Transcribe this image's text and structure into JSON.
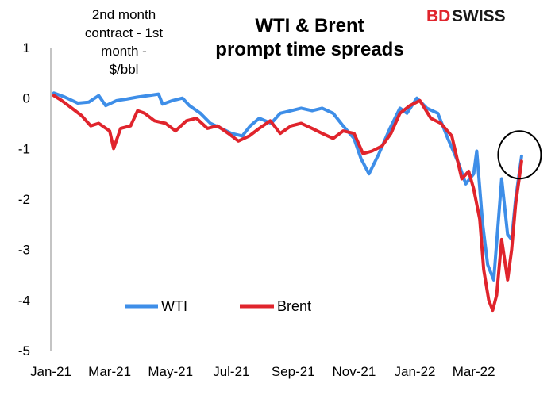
{
  "brand": {
    "prefix": "BD",
    "suffix": "SWISS"
  },
  "chart_data": {
    "type": "line",
    "title_lines": [
      "WTI & Brent",
      "prompt time spreads"
    ],
    "unit_lines": [
      "2nd month",
      "contract - 1st",
      "month -",
      "$/bbl"
    ],
    "y_ticks": [
      "1",
      "0",
      "-1",
      "-2",
      "-3",
      "-4",
      "-5"
    ],
    "ylim": [
      -5,
      1
    ],
    "x_tick_labels": [
      "Jan-21",
      "Mar-21",
      "May-21",
      "Jul-21",
      "Sep-21",
      "Nov-21",
      "Jan-22",
      "Mar-22"
    ],
    "x_tick_dates": [
      "2021-01-01",
      "2021-03-01",
      "2021-05-01",
      "2021-07-01",
      "2021-09-01",
      "2021-11-01",
      "2022-01-01",
      "2022-03-01"
    ],
    "x_range": [
      "2021-01-01",
      "2022-04-30"
    ],
    "legend_position": "bottom-left",
    "series": [
      {
        "name": "WTI",
        "color": "#3e8ee8",
        "points": [
          [
            "2021-01-04",
            0.1
          ],
          [
            "2021-01-15",
            0.02
          ],
          [
            "2021-01-28",
            -0.1
          ],
          [
            "2021-02-08",
            -0.08
          ],
          [
            "2021-02-18",
            0.05
          ],
          [
            "2021-02-25",
            -0.15
          ],
          [
            "2021-03-08",
            -0.05
          ],
          [
            "2021-03-18",
            -0.02
          ],
          [
            "2021-03-29",
            0.02
          ],
          [
            "2021-04-09",
            0.05
          ],
          [
            "2021-04-19",
            0.08
          ],
          [
            "2021-04-23",
            -0.12
          ],
          [
            "2021-05-03",
            -0.05
          ],
          [
            "2021-05-13",
            0.0
          ],
          [
            "2021-05-20",
            -0.15
          ],
          [
            "2021-05-31",
            -0.3
          ],
          [
            "2021-06-10",
            -0.5
          ],
          [
            "2021-06-21",
            -0.6
          ],
          [
            "2021-07-01",
            -0.7
          ],
          [
            "2021-07-12",
            -0.75
          ],
          [
            "2021-07-20",
            -0.55
          ],
          [
            "2021-07-29",
            -0.4
          ],
          [
            "2021-08-10",
            -0.5
          ],
          [
            "2021-08-19",
            -0.3
          ],
          [
            "2021-08-30",
            -0.25
          ],
          [
            "2021-09-09",
            -0.2
          ],
          [
            "2021-09-20",
            -0.25
          ],
          [
            "2021-09-30",
            -0.2
          ],
          [
            "2021-10-11",
            -0.3
          ],
          [
            "2021-10-21",
            -0.55
          ],
          [
            "2021-11-01",
            -0.8
          ],
          [
            "2021-11-08",
            -1.2
          ],
          [
            "2021-11-16",
            -1.5
          ],
          [
            "2021-11-26",
            -1.1
          ],
          [
            "2021-12-07",
            -0.6
          ],
          [
            "2021-12-17",
            -0.2
          ],
          [
            "2021-12-24",
            -0.3
          ],
          [
            "2022-01-03",
            0.0
          ],
          [
            "2022-01-13",
            -0.2
          ],
          [
            "2022-01-24",
            -0.3
          ],
          [
            "2022-02-03",
            -0.8
          ],
          [
            "2022-02-14",
            -1.3
          ],
          [
            "2022-02-21",
            -1.7
          ],
          [
            "2022-03-01",
            -1.5
          ],
          [
            "2022-03-04",
            -1.05
          ],
          [
            "2022-03-10",
            -2.5
          ],
          [
            "2022-03-15",
            -3.3
          ],
          [
            "2022-03-21",
            -3.6
          ],
          [
            "2022-03-25",
            -2.6
          ],
          [
            "2022-03-29",
            -1.6
          ],
          [
            "2022-04-04",
            -2.7
          ],
          [
            "2022-04-08",
            -2.8
          ],
          [
            "2022-04-12",
            -2.0
          ],
          [
            "2022-04-18",
            -1.15
          ]
        ]
      },
      {
        "name": "Brent",
        "color": "#e0242c",
        "points": [
          [
            "2021-01-04",
            0.05
          ],
          [
            "2021-01-12",
            -0.05
          ],
          [
            "2021-01-22",
            -0.2
          ],
          [
            "2021-02-01",
            -0.35
          ],
          [
            "2021-02-10",
            -0.55
          ],
          [
            "2021-02-18",
            -0.5
          ],
          [
            "2021-03-01",
            -0.65
          ],
          [
            "2021-03-05",
            -1.0
          ],
          [
            "2021-03-12",
            -0.6
          ],
          [
            "2021-03-22",
            -0.55
          ],
          [
            "2021-03-29",
            -0.25
          ],
          [
            "2021-04-05",
            -0.3
          ],
          [
            "2021-04-15",
            -0.45
          ],
          [
            "2021-04-26",
            -0.5
          ],
          [
            "2021-05-06",
            -0.65
          ],
          [
            "2021-05-17",
            -0.45
          ],
          [
            "2021-05-27",
            -0.4
          ],
          [
            "2021-06-07",
            -0.6
          ],
          [
            "2021-06-17",
            -0.55
          ],
          [
            "2021-06-28",
            -0.7
          ],
          [
            "2021-07-08",
            -0.85
          ],
          [
            "2021-07-19",
            -0.75
          ],
          [
            "2021-07-29",
            -0.6
          ],
          [
            "2021-08-09",
            -0.45
          ],
          [
            "2021-08-19",
            -0.7
          ],
          [
            "2021-08-30",
            -0.55
          ],
          [
            "2021-09-09",
            -0.5
          ],
          [
            "2021-09-20",
            -0.6
          ],
          [
            "2021-09-30",
            -0.7
          ],
          [
            "2021-10-11",
            -0.8
          ],
          [
            "2021-10-21",
            -0.65
          ],
          [
            "2021-11-01",
            -0.7
          ],
          [
            "2021-11-10",
            -1.1
          ],
          [
            "2021-11-19",
            -1.05
          ],
          [
            "2021-11-29",
            -0.95
          ],
          [
            "2021-12-08",
            -0.7
          ],
          [
            "2021-12-17",
            -0.3
          ],
          [
            "2021-12-27",
            -0.15
          ],
          [
            "2022-01-06",
            -0.05
          ],
          [
            "2022-01-17",
            -0.4
          ],
          [
            "2022-01-27",
            -0.5
          ],
          [
            "2022-02-07",
            -0.75
          ],
          [
            "2022-02-17",
            -1.6
          ],
          [
            "2022-02-24",
            -1.45
          ],
          [
            "2022-03-01",
            -1.8
          ],
          [
            "2022-03-07",
            -2.4
          ],
          [
            "2022-03-11",
            -3.4
          ],
          [
            "2022-03-16",
            -4.0
          ],
          [
            "2022-03-20",
            -4.2
          ],
          [
            "2022-03-24",
            -3.9
          ],
          [
            "2022-03-29",
            -2.8
          ],
          [
            "2022-04-04",
            -3.6
          ],
          [
            "2022-04-08",
            -3.0
          ],
          [
            "2022-04-12",
            -2.1
          ],
          [
            "2022-04-18",
            -1.25
          ]
        ]
      }
    ],
    "annotation": {
      "type": "circle",
      "at": [
        "2022-04-16",
        -1.25
      ]
    }
  }
}
